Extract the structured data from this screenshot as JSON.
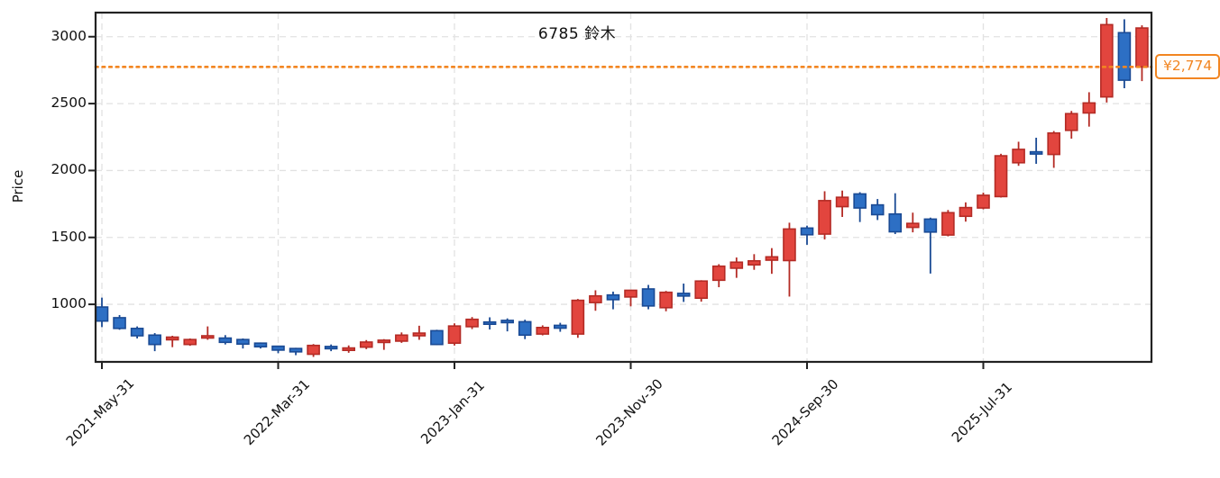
{
  "title": "6785 鈴木",
  "ylabel": "Price",
  "price_line_label": "¥2,774",
  "colors": {
    "up_fill": "#e2453e",
    "up_edge": "#b42b25",
    "down_fill": "#2d6fc4",
    "down_edge": "#1a4a94",
    "accent_orange": "#f28520",
    "grid": "#e2e2e2",
    "spine": "#222222"
  },
  "chart_data": {
    "type": "candlestick",
    "title": "6785 鈴木",
    "xlabel": "",
    "ylabel": "Price",
    "ylim": [
      570,
      3180
    ],
    "grid": true,
    "y_ticks": [
      1000,
      1500,
      2000,
      2500,
      3000
    ],
    "x_ticks": [
      {
        "index": 0,
        "label": "2021-May-31"
      },
      {
        "index": 10,
        "label": "2022-Mar-31"
      },
      {
        "index": 20,
        "label": "2023-Jan-31"
      },
      {
        "index": 30,
        "label": "2023-Nov-30"
      },
      {
        "index": 40,
        "label": "2024-Sep-30"
      },
      {
        "index": 50,
        "label": "2025-Jul-31"
      }
    ],
    "color_convention": "red body = close >= open (up month), blue body = close < open (down month)",
    "hline": {
      "value": 2774,
      "label": "¥2,774",
      "style": "dotted",
      "color": "#f28520"
    },
    "ohlc_columns": [
      "open",
      "high",
      "low",
      "close"
    ],
    "ohlc": [
      [
        980,
        1050,
        830,
        875
      ],
      [
        900,
        920,
        810,
        820
      ],
      [
        820,
        835,
        745,
        765
      ],
      [
        770,
        785,
        650,
        700
      ],
      [
        735,
        765,
        680,
        755
      ],
      [
        700,
        745,
        690,
        737
      ],
      [
        750,
        835,
        735,
        765
      ],
      [
        748,
        770,
        700,
        716
      ],
      [
        737,
        745,
        670,
        703
      ],
      [
        710,
        715,
        670,
        683
      ],
      [
        687,
        690,
        635,
        658
      ],
      [
        670,
        675,
        620,
        645
      ],
      [
        627,
        703,
        607,
        693
      ],
      [
        685,
        700,
        650,
        670
      ],
      [
        656,
        693,
        638,
        674
      ],
      [
        680,
        733,
        665,
        718
      ],
      [
        720,
        740,
        660,
        732
      ],
      [
        725,
        790,
        712,
        770
      ],
      [
        765,
        840,
        735,
        785
      ],
      [
        803,
        810,
        695,
        700
      ],
      [
        710,
        858,
        692,
        838
      ],
      [
        833,
        905,
        815,
        888
      ],
      [
        868,
        903,
        812,
        855
      ],
      [
        880,
        895,
        798,
        870
      ],
      [
        870,
        885,
        740,
        770
      ],
      [
        778,
        843,
        768,
        827
      ],
      [
        843,
        862,
        795,
        822
      ],
      [
        778,
        1040,
        750,
        1030
      ],
      [
        1013,
        1105,
        952,
        1063
      ],
      [
        1070,
        1095,
        963,
        1035
      ],
      [
        1055,
        1110,
        985,
        1105
      ],
      [
        1115,
        1145,
        963,
        988
      ],
      [
        975,
        1100,
        948,
        1090
      ],
      [
        1082,
        1155,
        1018,
        1062
      ],
      [
        1046,
        1180,
        1020,
        1174
      ],
      [
        1180,
        1300,
        1128,
        1285
      ],
      [
        1270,
        1350,
        1198,
        1315
      ],
      [
        1295,
        1375,
        1258,
        1325
      ],
      [
        1330,
        1420,
        1228,
        1355
      ],
      [
        1327,
        1610,
        1058,
        1563
      ],
      [
        1570,
        1588,
        1445,
        1520
      ],
      [
        1525,
        1845,
        1485,
        1775
      ],
      [
        1730,
        1850,
        1653,
        1800
      ],
      [
        1825,
        1838,
        1615,
        1720
      ],
      [
        1743,
        1787,
        1630,
        1670
      ],
      [
        1675,
        1830,
        1525,
        1542
      ],
      [
        1575,
        1685,
        1538,
        1605
      ],
      [
        1637,
        1648,
        1230,
        1540
      ],
      [
        1518,
        1705,
        1508,
        1685
      ],
      [
        1658,
        1762,
        1618,
        1723
      ],
      [
        1720,
        1835,
        1710,
        1815
      ],
      [
        1805,
        2125,
        1798,
        2110
      ],
      [
        2058,
        2215,
        2035,
        2158
      ],
      [
        2140,
        2245,
        2050,
        2125
      ],
      [
        2120,
        2295,
        2020,
        2280
      ],
      [
        2300,
        2445,
        2238,
        2425
      ],
      [
        2430,
        2585,
        2328,
        2505
      ],
      [
        2550,
        3140,
        2508,
        3090
      ],
      [
        3030,
        3130,
        2615,
        2675
      ],
      [
        2774,
        3085,
        2668,
        3065
      ]
    ]
  }
}
